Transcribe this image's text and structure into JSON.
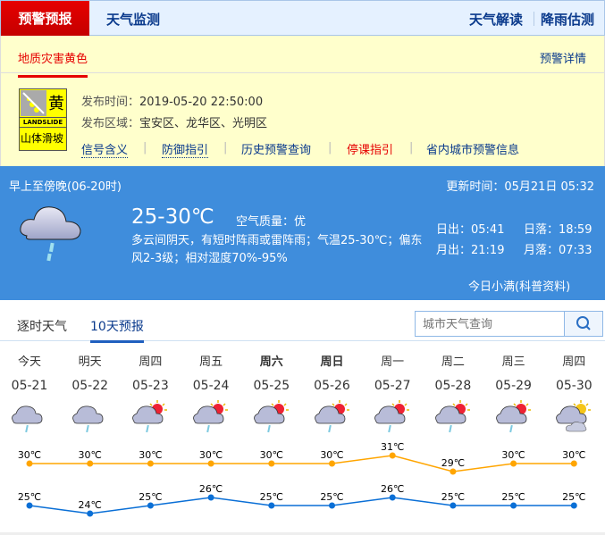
{
  "nav": {
    "active": "预警预报",
    "monitor": "天气监测",
    "interpret": "天气解读",
    "rain": "降雨估测"
  },
  "warning": {
    "tab": "地质灾害黄色",
    "detail": "预警详情",
    "icon": {
      "level": "黄",
      "en": "LANDSLIDE",
      "cn": "山体滑坡",
      "color": "#ffff00"
    },
    "time_label": "发布时间：",
    "time": "2019-05-20 22:50:00",
    "area_label": "发布区域：",
    "area": "宝安区、龙华区、光明区",
    "links": [
      "信号含义",
      "防御指引",
      "历史预警查询",
      "停课指引",
      "省内城市预警信息"
    ]
  },
  "today": {
    "period": "早上至傍晚(06-20时)",
    "update": "更新时间：05月21日 05:32",
    "temp": "25-30℃",
    "aqi_label": "空气质量：",
    "aqi": "优",
    "desc": "多云间阴天，有短时阵雨或雷阵雨；气温25-30℃；偏东风2-3级；相对湿度70%-95%",
    "sunrise": "日出：05:41",
    "sunset": "日落：18:59",
    "moonrise": "月出：21:19",
    "moonset": "月落：07:33",
    "solar_term": "今日小满(科普资料)",
    "icon": "cloud-rain-icon"
  },
  "tabs": {
    "hourly": "逐时天气",
    "tenday": "10天预报"
  },
  "search": {
    "placeholder": "城市天气查询"
  },
  "forecast": {
    "colors": {
      "high": "#ffa500",
      "low": "#0a6fd6"
    },
    "days": [
      {
        "day": "今天",
        "date": "05-21",
        "icon": "rain",
        "high": 30,
        "low": 25,
        "bold": false
      },
      {
        "day": "明天",
        "date": "05-22",
        "icon": "rain",
        "high": 30,
        "low": 24,
        "bold": false
      },
      {
        "day": "周四",
        "date": "05-23",
        "icon": "sun-cloud-rain",
        "high": 30,
        "low": 25,
        "bold": false
      },
      {
        "day": "周五",
        "date": "05-24",
        "icon": "sun-cloud-rain",
        "high": 30,
        "low": 26,
        "bold": false
      },
      {
        "day": "周六",
        "date": "05-25",
        "icon": "sun-cloud-rain",
        "high": 30,
        "low": 25,
        "bold": true
      },
      {
        "day": "周日",
        "date": "05-26",
        "icon": "sun-cloud-rain",
        "high": 30,
        "low": 25,
        "bold": true
      },
      {
        "day": "周一",
        "date": "05-27",
        "icon": "sun-cloud-rain",
        "high": 31,
        "low": 26,
        "bold": false
      },
      {
        "day": "周二",
        "date": "05-28",
        "icon": "sun-cloud-rain",
        "high": 29,
        "low": 25,
        "bold": false
      },
      {
        "day": "周三",
        "date": "05-29",
        "icon": "sun-cloud-rain",
        "high": 30,
        "low": 25,
        "bold": false
      },
      {
        "day": "周四",
        "date": "05-30",
        "icon": "sun-cloud",
        "high": 30,
        "low": 25,
        "bold": false
      }
    ],
    "unit": "℃"
  }
}
